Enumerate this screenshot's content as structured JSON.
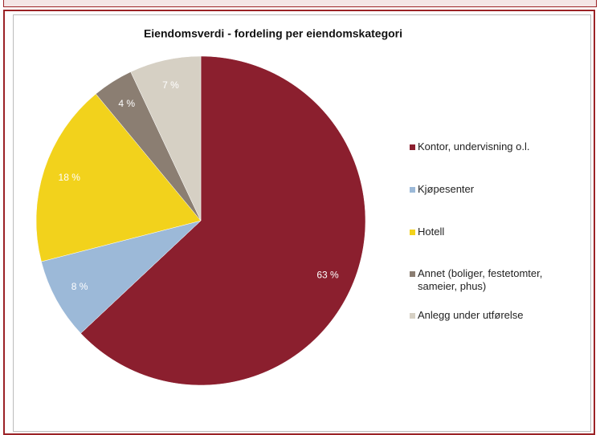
{
  "chart_data": {
    "type": "pie",
    "title": "Eiendomsverdi - fordeling per eiendomskategori",
    "categories": [
      "Kontor, undervisning o.l.",
      "Kjøpesenter",
      "Hotell",
      "Annet (boliger, festetomter, sameier, phus)",
      "Anlegg under utførelse"
    ],
    "values": [
      63,
      8,
      18,
      4,
      7
    ],
    "value_labels": [
      "63 %",
      "8 %",
      "18 %",
      "4 %",
      "7 %"
    ],
    "colors": [
      "#8b1f2e",
      "#9cb9d8",
      "#f2d21c",
      "#8b7e72",
      "#d6d0c4"
    ],
    "legend": "right"
  }
}
